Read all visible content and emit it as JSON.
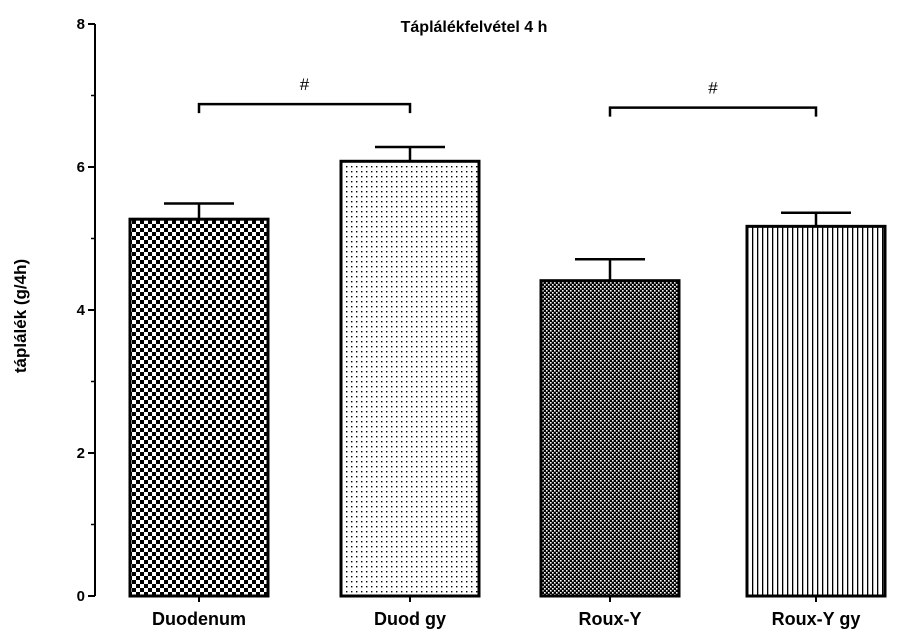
{
  "chart_data": {
    "type": "bar",
    "title": "Táplálékfelvétel 4 h",
    "xlabel": "",
    "ylabel": "táplálék (g/4h)",
    "ylim": [
      0,
      8
    ],
    "yticks": [
      "0",
      "2",
      "4",
      "6",
      "8"
    ],
    "categories": [
      "Duodenum",
      "Duod gy",
      "Roux-Y",
      "Roux-Y gy"
    ],
    "values": [
      5.27,
      6.08,
      4.41,
      5.17
    ],
    "errors": [
      0.22,
      0.2,
      0.3,
      0.19
    ],
    "patterns": [
      "checkerboard",
      "fine-dots",
      "dense-dots",
      "vertical-lines"
    ],
    "annotations": [
      {
        "label": "#",
        "from": "Duodenum",
        "to": "Duod gy",
        "y": 6.88
      },
      {
        "label": "#",
        "from": "Roux-Y",
        "to": "Roux-Y gy",
        "y": 6.83
      }
    ],
    "grid": false,
    "legend": "none"
  }
}
